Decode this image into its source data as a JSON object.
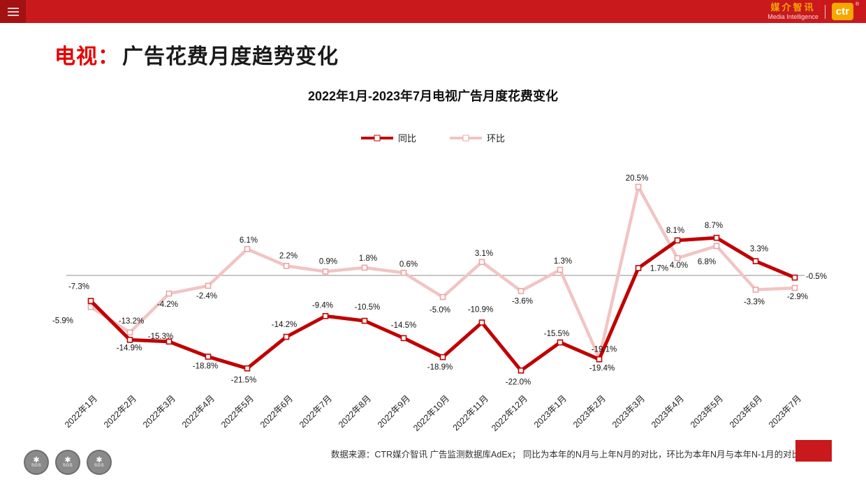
{
  "topbar": {
    "brand_cn": "媒介智讯",
    "brand_en": "Media Intelligence",
    "logo_text": "ctr",
    "reg_mark": "®",
    "bar_color": "#C9191C",
    "accent_color": "#F5A800"
  },
  "heading": {
    "prefix": "电视：",
    "rest": "广告花费月度趋势变化"
  },
  "chart_data": {
    "type": "line",
    "title": "2022年1月-2023年7月电视广告月度花费变化",
    "categories": [
      "2022年1月",
      "2022年2月",
      "2022年3月",
      "2022年4月",
      "2022年5月",
      "2022年6月",
      "2022年7月",
      "2022年8月",
      "2022年9月",
      "2022年10月",
      "2022年11月",
      "2022年12月",
      "2023年1月",
      "2023年2月",
      "2023年3月",
      "2023年4月",
      "2023年5月",
      "2023年6月",
      "2023年7月"
    ],
    "series": [
      {
        "name": "同比",
        "color": "#C00000",
        "marker_stroke": "#C00000",
        "line_width": 5,
        "values": [
          -5.9,
          -14.9,
          -15.3,
          -18.8,
          -21.5,
          -14.2,
          -9.4,
          -10.5,
          -14.5,
          -18.9,
          -10.9,
          -22.0,
          -15.5,
          -19.4,
          1.7,
          8.1,
          8.7,
          3.3,
          -0.5
        ]
      },
      {
        "name": "环比",
        "color": "#F2C4C4",
        "marker_stroke": "#E9A6A6",
        "line_width": 4.5,
        "values": [
          -7.3,
          -13.2,
          -4.2,
          -2.4,
          6.1,
          2.2,
          0.9,
          1.8,
          0.6,
          -5.0,
          3.1,
          -3.6,
          1.3,
          -19.1,
          20.5,
          4.0,
          6.8,
          -3.3,
          -2.9
        ]
      }
    ],
    "label_format": "0.0%",
    "ylim": [
      -25,
      25
    ],
    "grid": false,
    "zero_line": true,
    "axis_color": "#8c8c8c",
    "legend_position": "top-center",
    "label_offsets": [
      [
        [
          -40,
          32
        ],
        [
          -1,
          15
        ],
        [
          -12,
          -4
        ],
        [
          -4,
          17
        ],
        [
          -5,
          20
        ],
        [
          -3,
          -14
        ],
        [
          -4,
          -12
        ],
        [
          4,
          -16
        ],
        [
          0,
          -15
        ],
        [
          -4,
          18
        ],
        [
          -2,
          -15
        ],
        [
          -4,
          20
        ],
        [
          -5,
          -9
        ],
        [
          4,
          16
        ],
        [
          30,
          4
        ],
        [
          -3,
          -11
        ],
        [
          -4,
          -14
        ],
        [
          5,
          -14
        ],
        [
          31,
          2
        ]
      ],
      [
        [
          -17,
          -26
        ],
        [
          2,
          -13
        ],
        [
          -2,
          19
        ],
        [
          -2,
          18
        ],
        [
          2,
          -9
        ],
        [
          3,
          -11
        ],
        [
          4,
          -11
        ],
        [
          5,
          -10
        ],
        [
          7,
          -9
        ],
        [
          -4,
          22
        ],
        [
          3,
          -9
        ],
        [
          2,
          18
        ],
        [
          4,
          -9
        ],
        [
          7,
          -9
        ],
        [
          -2,
          -9
        ],
        [
          2,
          14
        ],
        [
          -14,
          26
        ],
        [
          -2,
          21
        ],
        [
          4,
          16
        ]
      ]
    ]
  },
  "footer": {
    "note": "数据来源：CTR媒介智讯 广告监测数据库AdEx； 同比为本年的N月与上年N月的对比，环比为本年N月与本年N-1月的对比"
  },
  "badges": {
    "star": "✱",
    "items": [
      "SGS",
      "SGS",
      "SGS"
    ]
  }
}
